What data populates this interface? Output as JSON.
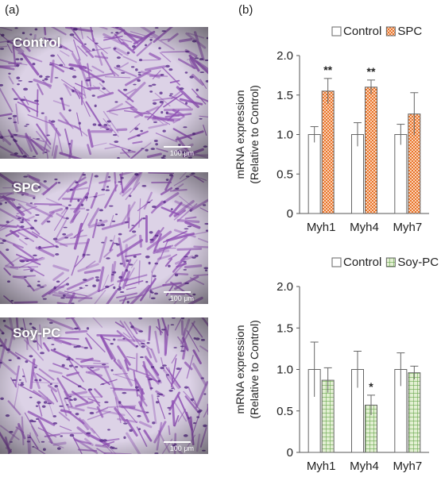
{
  "panel_a": {
    "label": "(a)",
    "images": [
      {
        "name": "Control",
        "scale": "100 μm"
      },
      {
        "name": "SPC",
        "scale": "100 μm"
      },
      {
        "name": "Soy-PC",
        "scale": "100 μm"
      }
    ]
  },
  "panel_b": {
    "label": "(b)"
  },
  "colors": {
    "control_fill": "#ffffff",
    "spc_fill": "#fbd3b8",
    "spc_pattern": "#e8742a",
    "soy_fill": "#e3f0d3",
    "soy_pattern": "#6aa84f",
    "stain_bg": "#dcd2e6",
    "stain_cell": "#8e4fb3",
    "stain_nucleus": "#5b2d8c"
  },
  "chart_data": [
    {
      "type": "bar",
      "categories": [
        "Myh1",
        "Myh4",
        "Myh7"
      ],
      "series": [
        {
          "name": "Control",
          "values": [
            1.0,
            1.0,
            1.0
          ],
          "errors": [
            0.1,
            0.15,
            0.13
          ]
        },
        {
          "name": "SPC",
          "values": [
            1.55,
            1.6,
            1.26
          ],
          "errors": [
            0.16,
            0.09,
            0.27
          ]
        }
      ],
      "significance": [
        "**",
        "**",
        ""
      ],
      "ylabel": [
        "mRNA expression",
        "(Relative to Control)"
      ],
      "ylim": [
        0,
        2.0
      ],
      "yticks": [
        "0",
        "0.5",
        "1.0",
        "1.5",
        "2.0"
      ],
      "legend_position": "top-right",
      "grid": false
    },
    {
      "type": "bar",
      "categories": [
        "Myh1",
        "Myh4",
        "Myh7"
      ],
      "series": [
        {
          "name": "Control",
          "values": [
            1.0,
            1.0,
            1.0
          ],
          "errors": [
            0.33,
            0.22,
            0.2
          ]
        },
        {
          "name": "Soy-PC",
          "values": [
            0.87,
            0.57,
            0.96
          ],
          "errors": [
            0.15,
            0.12,
            0.08
          ]
        }
      ],
      "significance": [
        "",
        "*",
        ""
      ],
      "ylabel": [
        "mRNA expression",
        "(Relative to Control)"
      ],
      "ylim": [
        0,
        2.0
      ],
      "yticks": [
        "0",
        "0.5",
        "1.0",
        "1.5",
        "2.0"
      ],
      "legend_position": "top-right",
      "grid": false
    }
  ]
}
